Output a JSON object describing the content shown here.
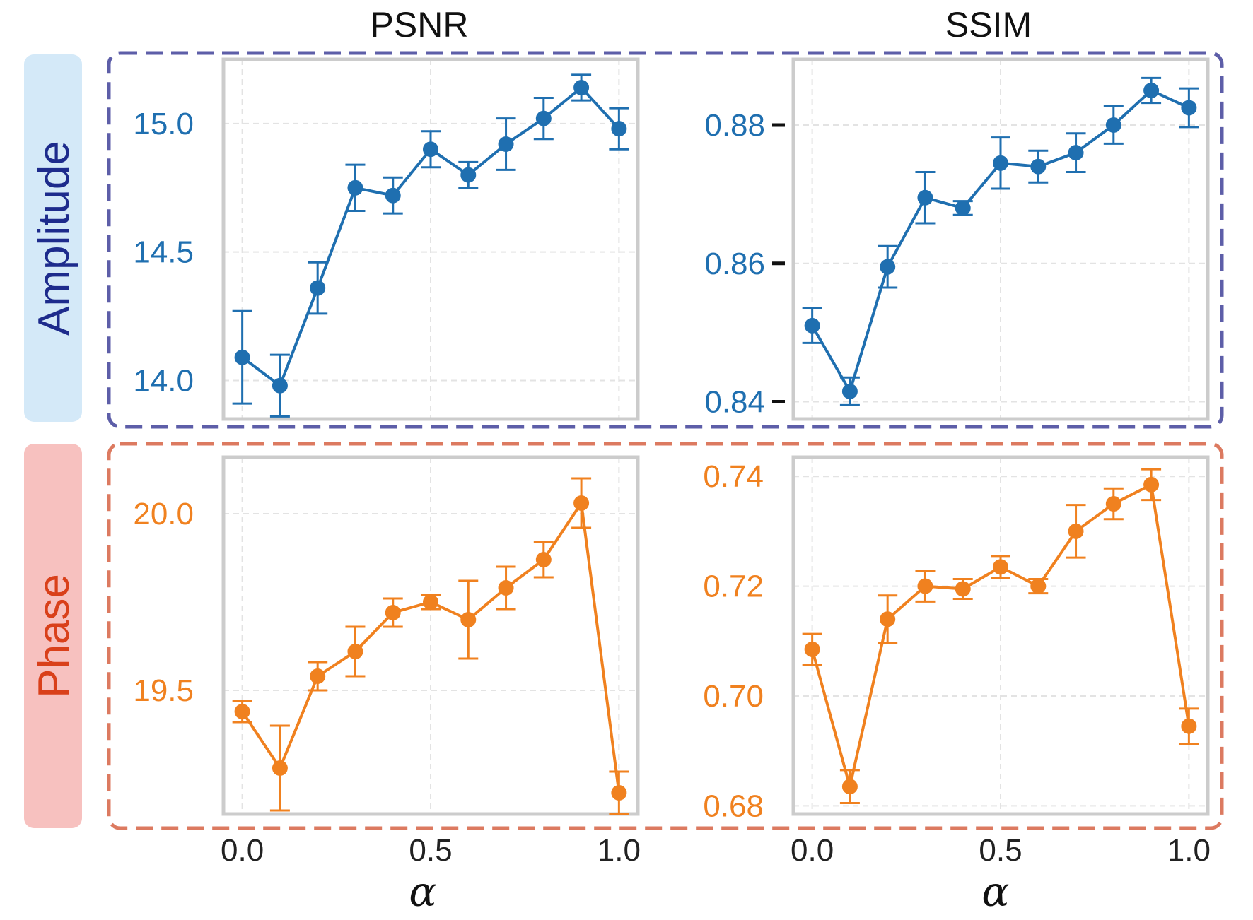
{
  "figure": {
    "column_titles": [
      "PSNR",
      "SSIM"
    ],
    "row_labels": [
      "Amplitude",
      "Phase"
    ],
    "colors": {
      "amplitude_series": "#1f6fb0",
      "phase_series": "#f0811f",
      "amplitude_label_text": "#1d2b8c",
      "amplitude_label_bg": "#d4e9f8",
      "amplitude_border": "#5d5ea8",
      "phase_label_text": "#d9401a",
      "phase_label_bg": "#f7c1bf",
      "phase_border": "#dc7a60",
      "axes_frame": "#cccccc",
      "grid": "#e3e3e3",
      "black_tick": "#111111"
    }
  },
  "chart_data": [
    {
      "id": "amp-psnr",
      "type": "line",
      "row": "Amplitude",
      "title": "PSNR",
      "xlabel": "α",
      "ylabel": "",
      "x": [
        0.0,
        0.1,
        0.2,
        0.3,
        0.4,
        0.5,
        0.6,
        0.7,
        0.8,
        0.9,
        1.0
      ],
      "y": [
        14.09,
        13.98,
        14.36,
        14.75,
        14.72,
        14.9,
        14.8,
        14.92,
        15.02,
        15.14,
        14.98
      ],
      "err": [
        0.18,
        0.12,
        0.1,
        0.09,
        0.07,
        0.07,
        0.05,
        0.1,
        0.08,
        0.05,
        0.08
      ],
      "xlim": [
        -0.05,
        1.05
      ],
      "ylim": [
        13.85,
        15.25
      ],
      "xticks": [
        0.0,
        0.5,
        1.0
      ],
      "xtick_labels": [
        "0.0",
        "0.5",
        "1.0"
      ],
      "yticks": [
        14.0,
        14.5,
        15.0
      ],
      "ytick_labels": [
        "14.0",
        "14.5",
        "15.0"
      ],
      "show_xtick_labels": false,
      "grid": true,
      "color": "#1f6fb0"
    },
    {
      "id": "amp-ssim",
      "type": "line",
      "row": "Amplitude",
      "title": "SSIM",
      "xlabel": "α",
      "ylabel": "",
      "x": [
        0.0,
        0.1,
        0.2,
        0.3,
        0.4,
        0.5,
        0.6,
        0.7,
        0.8,
        0.9,
        1.0
      ],
      "y": [
        0.851,
        0.8415,
        0.8595,
        0.8695,
        0.868,
        0.8745,
        0.874,
        0.876,
        0.88,
        0.885,
        0.8825
      ],
      "err": [
        0.0025,
        0.002,
        0.003,
        0.0037,
        0.001,
        0.0037,
        0.0023,
        0.0028,
        0.0027,
        0.0018,
        0.0028
      ],
      "xlim": [
        -0.05,
        1.05
      ],
      "ylim": [
        0.8375,
        0.8895
      ],
      "xticks": [
        0.0,
        0.5,
        1.0
      ],
      "xtick_labels": [
        "0.0",
        "0.5",
        "1.0"
      ],
      "yticks": [
        0.84,
        0.86,
        0.88
      ],
      "ytick_labels": [
        "0.84",
        "0.86",
        "0.88"
      ],
      "show_xtick_labels": false,
      "grid": true,
      "color": "#1f6fb0"
    },
    {
      "id": "phase-psnr",
      "type": "line",
      "row": "Phase",
      "title": "PSNR",
      "xlabel": "α",
      "ylabel": "",
      "x": [
        0.0,
        0.1,
        0.2,
        0.3,
        0.4,
        0.5,
        0.6,
        0.7,
        0.8,
        0.9,
        1.0
      ],
      "y": [
        19.44,
        19.28,
        19.54,
        19.61,
        19.72,
        19.75,
        19.7,
        19.79,
        19.87,
        20.03,
        19.21
      ],
      "err": [
        0.03,
        0.12,
        0.04,
        0.07,
        0.04,
        0.02,
        0.11,
        0.06,
        0.05,
        0.07,
        0.06
      ],
      "xlim": [
        -0.05,
        1.05
      ],
      "ylim": [
        19.15,
        20.16
      ],
      "xticks": [
        0.0,
        0.5,
        1.0
      ],
      "xtick_labels": [
        "0.0",
        "0.5",
        "1.0"
      ],
      "yticks": [
        19.5,
        20.0
      ],
      "ytick_labels": [
        "19.5",
        "20.0"
      ],
      "show_xtick_labels": true,
      "grid": true,
      "color": "#f0811f"
    },
    {
      "id": "phase-ssim",
      "type": "line",
      "row": "Phase",
      "title": "SSIM",
      "xlabel": "α",
      "ylabel": "",
      "x": [
        0.0,
        0.1,
        0.2,
        0.3,
        0.4,
        0.5,
        0.6,
        0.7,
        0.8,
        0.9,
        1.0
      ],
      "y": [
        0.7085,
        0.6835,
        0.714,
        0.72,
        0.7195,
        0.7235,
        0.72,
        0.73,
        0.735,
        0.7385,
        0.6945
      ],
      "err": [
        0.0028,
        0.003,
        0.0043,
        0.0028,
        0.0018,
        0.002,
        0.0013,
        0.0048,
        0.0028,
        0.0028,
        0.0032
      ],
      "xlim": [
        -0.05,
        1.05
      ],
      "ylim": [
        0.6785,
        0.7435
      ],
      "xticks": [
        0.0,
        0.5,
        1.0
      ],
      "xtick_labels": [
        "0.0",
        "0.5",
        "1.0"
      ],
      "yticks": [
        0.68,
        0.7,
        0.72,
        0.74
      ],
      "ytick_labels": [
        "0.68",
        "0.70",
        "0.72",
        "0.74"
      ],
      "show_xtick_labels": true,
      "grid": true,
      "color": "#f0811f"
    }
  ]
}
